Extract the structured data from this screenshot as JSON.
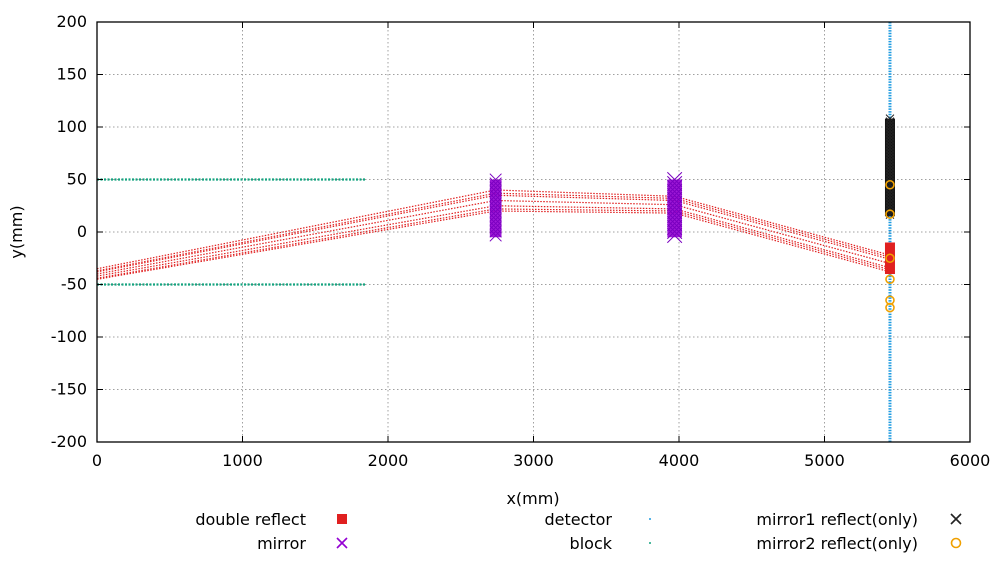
{
  "chart_data": {
    "type": "scatter",
    "xlabel": "x(mm)",
    "ylabel": "y(mm)",
    "xlim": [
      0,
      6000
    ],
    "ylim": [
      -200,
      200
    ],
    "grid": true,
    "xticks": [
      0,
      1000,
      2000,
      3000,
      4000,
      5000,
      6000
    ],
    "yticks": [
      -200,
      -150,
      -100,
      -50,
      0,
      50,
      100,
      150,
      200
    ],
    "legend_position": "bottom",
    "legend": [
      {
        "name": "double reflect",
        "color": "#e02020",
        "marker": "square"
      },
      {
        "name": "mirror",
        "color": "#9400d3",
        "marker": "x"
      },
      {
        "name": "detector",
        "color": "#1f9be0",
        "marker": "dot"
      },
      {
        "name": "block",
        "color": "#14a37f",
        "marker": "dot"
      },
      {
        "name": "mirror1 reflect(only)",
        "color": "#222222",
        "marker": "x"
      },
      {
        "name": "mirror2 reflect(only)",
        "color": "#f0a000",
        "marker": "circle"
      }
    ],
    "series": [
      {
        "name": "block",
        "color": "#14a37f",
        "segments": [
          {
            "x": [
              0,
              1850
            ],
            "y": [
              50,
              50
            ]
          },
          {
            "x": [
              0,
              1850
            ],
            "y": [
              -50,
              -50
            ]
          }
        ]
      },
      {
        "name": "mirror",
        "color": "#9400d3",
        "regions": [
          {
            "x": [
              2700,
              2780
            ],
            "y": [
              -5,
              50
            ]
          },
          {
            "x": [
              3920,
              4020
            ],
            "y": [
              -5,
              50
            ]
          }
        ]
      },
      {
        "name": "double reflect",
        "color": "#e02020",
        "rays": [
          {
            "x": [
              0,
              2740,
              3970,
              5450
            ],
            "y": [
              -45,
              20,
              18,
              -38
            ]
          },
          {
            "x": [
              0,
              2740,
              3970,
              5450
            ],
            "y": [
              -42,
              25,
              22,
              -34
            ]
          },
          {
            "x": [
              0,
              2740,
              3970,
              5450
            ],
            "y": [
              -40,
              30,
              26,
              -30
            ]
          },
          {
            "x": [
              0,
              2740,
              3970,
              5450
            ],
            "y": [
              -38,
              35,
              30,
              -26
            ]
          },
          {
            "x": [
              0,
              2740,
              3970,
              5450
            ],
            "y": [
              -35,
              40,
              34,
              -22
            ]
          },
          {
            "x": [
              0,
              2740,
              3970,
              5450
            ],
            "y": [
              -44,
              22,
              20,
              -36
            ]
          },
          {
            "x": [
              0,
              2740,
              3970,
              5450
            ],
            "y": [
              -37,
              37,
              32,
              -24
            ]
          }
        ],
        "detector_hits": {
          "x": 5450,
          "y": [
            -10,
            -40
          ]
        }
      },
      {
        "name": "detector",
        "color": "#1f9be0",
        "line": {
          "x": 5450,
          "y": [
            -200,
            200
          ]
        }
      },
      {
        "name": "mirror1 reflect(only)",
        "color": "#222222",
        "hits": {
          "x": 5450,
          "y": [
            15,
            108
          ]
        }
      },
      {
        "name": "mirror2 reflect(only)",
        "color": "#f0a000",
        "points": [
          {
            "x": 5450,
            "y": 45
          },
          {
            "x": 5450,
            "y": 17
          },
          {
            "x": 5450,
            "y": -25
          },
          {
            "x": 5450,
            "y": -45
          },
          {
            "x": 5450,
            "y": -65
          },
          {
            "x": 5450,
            "y": -72
          }
        ]
      }
    ]
  }
}
